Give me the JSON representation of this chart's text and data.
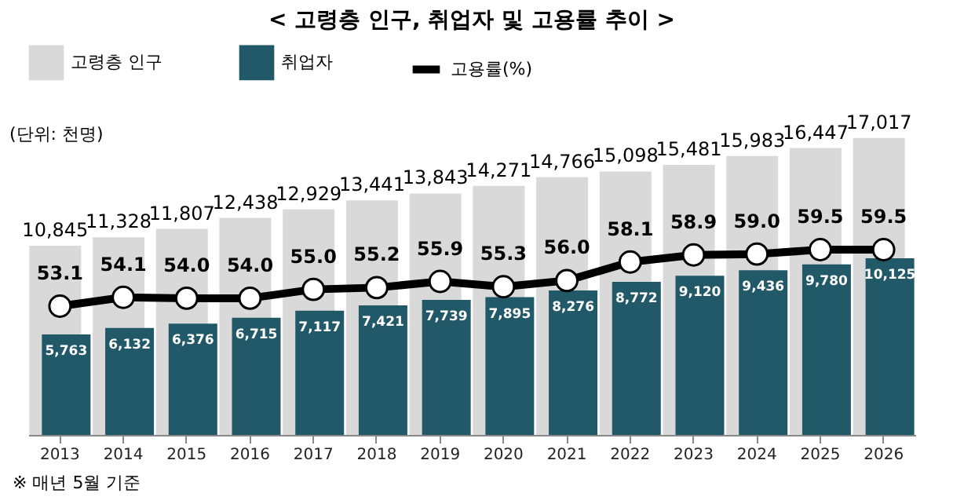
{
  "chart_data": {
    "type": "bar",
    "title": "< 고령층 인구, 취업자 및 고용률 추이 >",
    "categories": [
      "2013",
      "2014",
      "2015",
      "2016",
      "2017",
      "2018",
      "2019",
      "2020",
      "2021",
      "2022",
      "2023",
      "2024",
      "2025",
      "2026"
    ],
    "series": [
      {
        "name": "고령층 인구",
        "color": "#d9d9d9",
        "values": [
          10845,
          11328,
          11807,
          12438,
          12929,
          13441,
          13843,
          14271,
          14766,
          15098,
          15481,
          15983,
          16447,
          17017
        ],
        "value_labels": [
          "10,845",
          "11,328",
          "11,807",
          "12,438",
          "12,929",
          "13,441",
          "13,843",
          "14,271",
          "14,766",
          "15,098",
          "15,481",
          "15,983",
          "16,447",
          "17,017"
        ]
      },
      {
        "name": "취업자",
        "color": "#215968",
        "values": [
          5763,
          6132,
          6376,
          6715,
          7117,
          7421,
          7739,
          7895,
          8276,
          8772,
          9120,
          9436,
          9780,
          10125
        ],
        "value_labels": [
          "5,763",
          "6,132",
          "6,376",
          "6,715",
          "7,117",
          "7,421",
          "7,739",
          "7,895",
          "8,276",
          "8,772",
          "9,120",
          "9,436",
          "9,780",
          "10,125"
        ]
      },
      {
        "name": "고용률(%)",
        "type": "line",
        "axis": "y2",
        "color": "#000000",
        "values": [
          53.1,
          54.1,
          54.0,
          54.0,
          55.0,
          55.2,
          55.9,
          55.3,
          56.0,
          58.1,
          58.9,
          59.0,
          59.5,
          59.5
        ],
        "value_labels": [
          "53.1",
          "54.1",
          "54.0",
          "54.0",
          "55.0",
          "55.2",
          "55.9",
          "55.3",
          "56.0",
          "58.1",
          "58.9",
          "59.0",
          "59.5",
          "59.5"
        ]
      }
    ],
    "marker": "circle",
    "line_style": "solid",
    "legend": "top left",
    "tick_labels": "x",
    "grid": false,
    "annotations": [
      "(단위: 천명)",
      "※ 매년 5월 기준"
    ]
  }
}
